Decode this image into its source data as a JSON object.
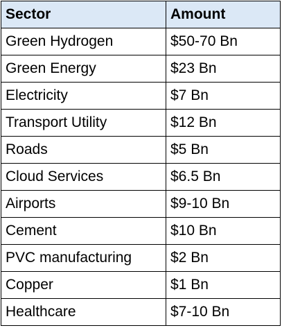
{
  "table": {
    "header": [
      "Sector",
      "Amount"
    ],
    "rows": [
      [
        "Green Hydrogen",
        "$50-70 Bn"
      ],
      [
        "Green Energy",
        "$23 Bn"
      ],
      [
        "Electricity",
        "$7 Bn"
      ],
      [
        "Transport Utility",
        "$12 Bn"
      ],
      [
        "Roads",
        "$5 Bn"
      ],
      [
        "Cloud Services",
        "$6.5 Bn"
      ],
      [
        "Airports",
        "$9-10 Bn"
      ],
      [
        "Cement",
        "$10 Bn"
      ],
      [
        "PVC manufacturing",
        "$2 Bn"
      ],
      [
        "Copper",
        "$1 Bn"
      ],
      [
        "Healthcare",
        "$7-10 Bn"
      ]
    ]
  }
}
